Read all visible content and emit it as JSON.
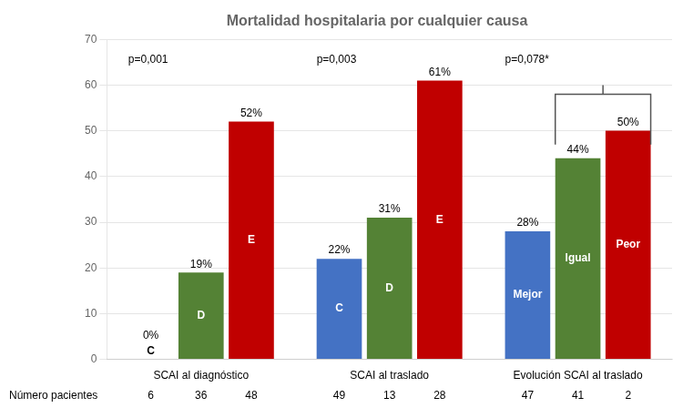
{
  "chart_data": {
    "type": "bar",
    "title": "Mortalidad hospitalaria por cualquier causa",
    "categories": [
      "SCAI al diagnóstico",
      "SCAI al traslado",
      "Evolución SCAI al traslado"
    ],
    "series": [
      {
        "color": "#4472C4",
        "values": [
          0,
          22,
          28
        ],
        "value_labels": [
          "0%",
          "22%",
          "28%"
        ],
        "bar_labels": [
          "C",
          "C",
          "Mejor"
        ],
        "n_values": [
          6,
          49,
          47
        ]
      },
      {
        "color": "#548235",
        "values": [
          19,
          31,
          44
        ],
        "value_labels": [
          "19%",
          "31%",
          "44%"
        ],
        "bar_labels": [
          "D",
          "D",
          "Igual"
        ],
        "n_values": [
          36,
          13,
          41
        ]
      },
      {
        "color": "#C00000",
        "values": [
          52,
          61,
          50
        ],
        "value_labels": [
          "52%",
          "61%",
          "50%"
        ],
        "bar_labels": [
          "E",
          "E",
          "Peor"
        ],
        "n_values": [
          48,
          28,
          2
        ]
      }
    ],
    "n_label": "Número pacientes",
    "annotations": [
      "p=0,001",
      "p=0,003",
      "p=0,078*"
    ],
    "bracket": {
      "category": "Evolución SCAI al traslado",
      "from": "Igual",
      "to": "Peor",
      "y": [
        47,
        58,
        60
      ],
      "color": "#555555"
    },
    "ylim": [
      0,
      70
    ],
    "yticks": [
      0,
      10,
      20,
      30,
      40,
      50,
      60,
      70
    ],
    "grid": true,
    "data_labels": true
  }
}
